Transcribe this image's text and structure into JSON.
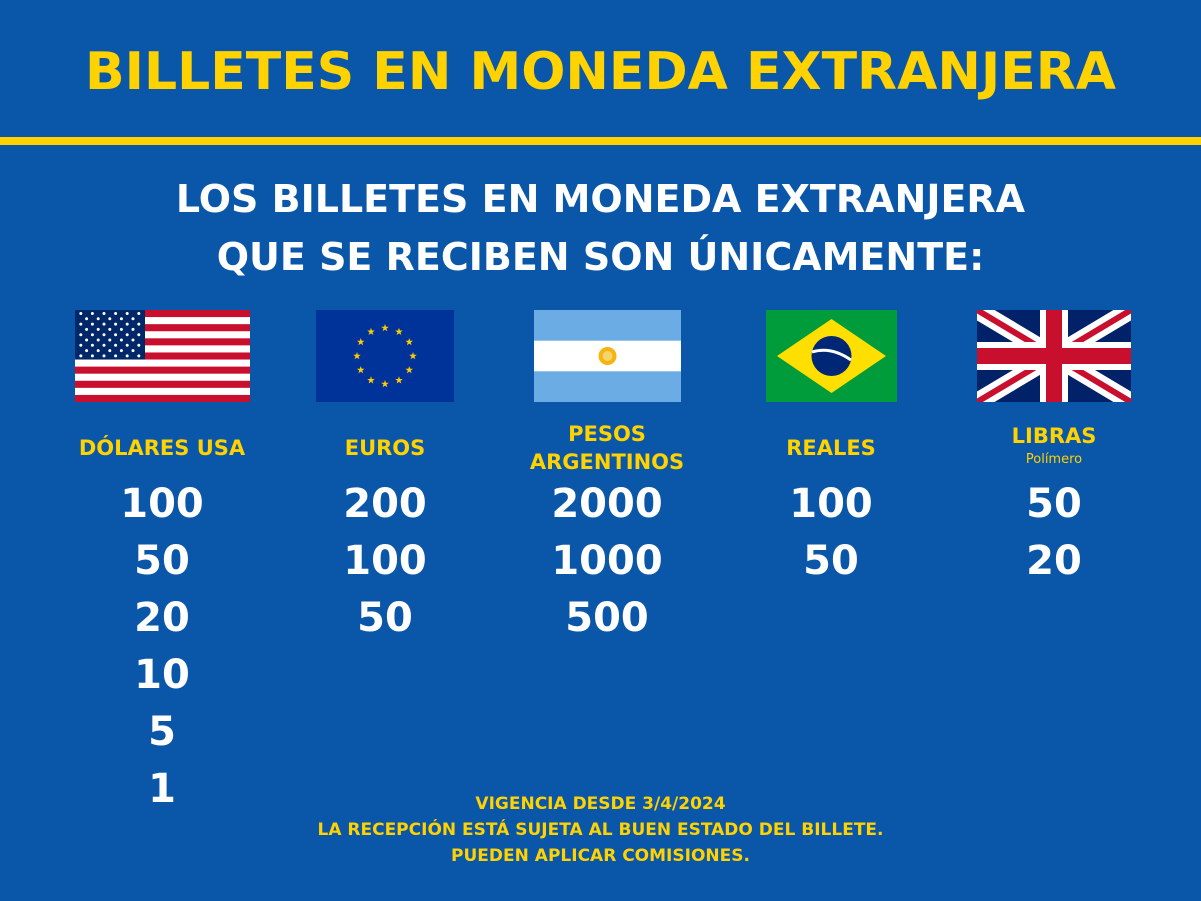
{
  "title": "BILLETES EN MONEDA EXTRANJERA",
  "subtitle": {
    "line1": "LOS BILLETES EN MONEDA EXTRANJERA",
    "line2": "QUE SE RECIBEN SON ÚNICAMENTE:"
  },
  "colors": {
    "background": "#0a56a8",
    "accent": "#ffd200",
    "text": "#ffffff"
  },
  "currencies": [
    {
      "flag_icon": "usa-flag-icon",
      "name": "DÓLARES USA",
      "note": "",
      "values": [
        "100",
        "50",
        "20",
        "10",
        "5",
        "1"
      ]
    },
    {
      "flag_icon": "eu-flag-icon",
      "name": "EUROS",
      "note": "",
      "values": [
        "200",
        "100",
        "50"
      ]
    },
    {
      "flag_icon": "argentina-flag-icon",
      "name_line1": "PESOS",
      "name_line2": "ARGENTINOS",
      "note": "",
      "values": [
        "2000",
        "1000",
        "500"
      ]
    },
    {
      "flag_icon": "brazil-flag-icon",
      "name": "REALES",
      "note": "",
      "values": [
        "100",
        "50"
      ]
    },
    {
      "flag_icon": "uk-flag-icon",
      "name": "LIBRAS",
      "note": "Polímero",
      "values": [
        "50",
        "20"
      ]
    }
  ],
  "footer": {
    "line1": "VIGENCIA DESDE  3/4/2024",
    "line2": "LA RECEPCIÓN ESTÁ SUJETA AL BUEN ESTADO DEL BILLETE.",
    "line3": "PUEDEN APLICAR COMISIONES."
  }
}
